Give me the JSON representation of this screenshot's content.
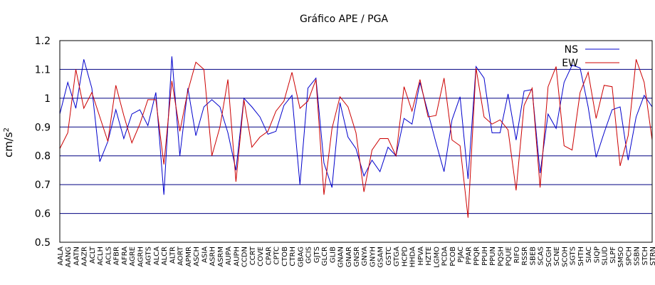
{
  "chart_data": {
    "type": "line",
    "title": "Gráfico  APE / PGA",
    "ylabel": "cm/s²",
    "xlabel": "",
    "ylim": [
      0.5,
      1.2
    ],
    "yticks": [
      "0.5",
      "0.6",
      "0.7",
      "0.8",
      "0.9",
      "1",
      "1.1",
      "1.2"
    ],
    "grid": "horizontal",
    "legend_position": "top-right",
    "categories": [
      "AALA",
      "AANG",
      "AATN",
      "AAZR",
      "ACLT",
      "ACLH",
      "ACLS",
      "AFBR",
      "AFRA",
      "AGRE",
      "AGRH",
      "AGTS",
      "ALCA",
      "ALCR",
      "ALTR",
      "AORT",
      "APMR",
      "ASCH",
      "ASIA",
      "ASRH",
      "ASRM",
      "AUPA",
      "AUPH",
      "CCDN",
      "CCRT",
      "COVE",
      "CPAR",
      "CPTC",
      "CTOB",
      "CTRH",
      "GBAG",
      "GCIS",
      "GJTS",
      "GLCR",
      "GLIB",
      "GNAN",
      "GNAR",
      "GNSR",
      "GNYA",
      "GNYH",
      "GSAM",
      "GSTC",
      "GTGA",
      "HCPD",
      "HHDA",
      "HPVA",
      "HZTE",
      "LGMO",
      "PCDA",
      "PCOB",
      "PJAC",
      "PPAR",
      "PPQR",
      "PPUH",
      "PPUN",
      "PQSH",
      "PQUE",
      "RIFO",
      "RSSR",
      "SBEB",
      "SCAS",
      "SCGH",
      "SCNE",
      "SCOH",
      "SGTS",
      "SHTH",
      "SIAC",
      "SIQP",
      "SLUD",
      "SLPF",
      "SMSO",
      "SPCH",
      "SSBN",
      "STCH",
      "STRN"
    ],
    "series": [
      {
        "name": "NS",
        "color": "#0000cc",
        "values": [
          0.945,
          1.055,
          0.965,
          1.135,
          1.035,
          0.78,
          0.85,
          0.96,
          0.86,
          0.945,
          0.96,
          0.905,
          1.02,
          0.665,
          1.145,
          0.8,
          1.035,
          0.87,
          0.97,
          0.995,
          0.97,
          0.88,
          0.75,
          1.0,
          0.97,
          0.935,
          0.875,
          0.885,
          0.975,
          1.01,
          0.7,
          1.035,
          1.07,
          0.775,
          0.69,
          0.985,
          0.865,
          0.825,
          0.73,
          0.785,
          0.745,
          0.83,
          0.8,
          0.93,
          0.91,
          1.055,
          0.95,
          0.845,
          0.745,
          0.925,
          1.005,
          0.72,
          1.11,
          1.07,
          0.88,
          0.88,
          1.015,
          0.855,
          1.025,
          1.03,
          0.74,
          0.945,
          0.895,
          1.055,
          1.115,
          1.105,
          0.97,
          0.795,
          0.88,
          0.96,
          0.97,
          0.785,
          0.935,
          1.01,
          0.97
        ]
      },
      {
        "name": "EW",
        "color": "#cc0000",
        "values": [
          0.825,
          0.88,
          1.1,
          0.965,
          1.02,
          0.935,
          0.85,
          1.045,
          0.94,
          0.845,
          0.91,
          0.995,
          0.995,
          0.77,
          1.06,
          0.885,
          1.025,
          1.125,
          1.1,
          0.8,
          0.9,
          1.065,
          0.71,
          0.995,
          0.83,
          0.865,
          0.885,
          0.955,
          0.99,
          1.09,
          0.965,
          0.99,
          1.065,
          0.665,
          0.895,
          1.005,
          0.97,
          0.88,
          0.675,
          0.82,
          0.86,
          0.86,
          0.8,
          1.04,
          0.955,
          1.065,
          0.935,
          0.94,
          1.07,
          0.855,
          0.835,
          0.585,
          1.105,
          0.935,
          0.91,
          0.925,
          0.89,
          0.68,
          0.975,
          1.035,
          0.69,
          1.04,
          1.11,
          0.835,
          0.82,
          1.02,
          1.09,
          0.93,
          1.045,
          1.04,
          0.765,
          0.87,
          1.135,
          1.055,
          0.855
        ]
      }
    ]
  }
}
